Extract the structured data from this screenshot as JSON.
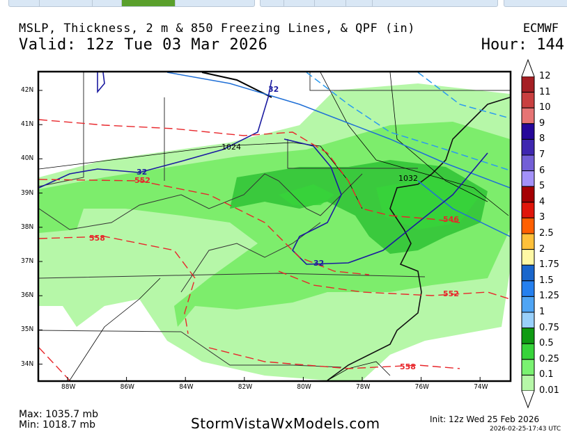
{
  "nav": {
    "groups": [
      {
        "buttons": 5,
        "active_index": 3
      },
      {
        "buttons": 5
      },
      {
        "buttons": 1
      }
    ]
  },
  "header": {
    "title": "MSLP, Thickness, 2 m & 850 Freezing Lines, & QPF (in)",
    "valid": "Valid: 12z Tue 03 Mar 2026",
    "model": "ECMWF",
    "hour": "Hour: 144"
  },
  "map": {
    "lat_labels": [
      "42N",
      "41N",
      "40N",
      "39N",
      "38N",
      "37N",
      "36N",
      "35N",
      "34N"
    ],
    "lon_labels": [
      "88W",
      "86W",
      "84W",
      "82W",
      "80W",
      "78W",
      "76W",
      "74W"
    ],
    "contour_labels": {
      "freezing": [
        "32",
        "32",
        "32"
      ],
      "isobars": [
        "1024",
        "1032"
      ],
      "thickness": [
        "552",
        "558",
        "546",
        "552",
        "558"
      ]
    },
    "colors": {
      "freezing_line": "#1a1aa0",
      "thickness": "#e8262b",
      "isobar": "#000000",
      "qpf_0_01": "#b6f7a8",
      "qpf_0_1": "#7ded6c",
      "qpf_0_25": "#3ac93d",
      "line_850": "#1f6fd6"
    }
  },
  "colorbar": {
    "labels": [
      "12",
      "11",
      "10",
      "9",
      "8",
      "7",
      "6",
      "5",
      "4",
      "3",
      "2.5",
      "2",
      "1.75",
      "1.5",
      "1.25",
      "1",
      "0.75",
      "0.5",
      "0.25",
      "0.1",
      "0.01"
    ],
    "colors": [
      "#a51f24",
      "#c93f3f",
      "#e67474",
      "#26079a",
      "#3f27b0",
      "#735fd6",
      "#a391f8",
      "#a50003",
      "#e0150a",
      "#ff5f00",
      "#ffc03a",
      "#fff8a5",
      "#1a66cc",
      "#2580ef",
      "#4fa5f5",
      "#99d0fb",
      "#0f9b13",
      "#37d43a",
      "#7af271",
      "#b6f7a8"
    ]
  },
  "footer": {
    "max": "Max: 1035.7 mb",
    "min": "Min: 1018.7 mb",
    "site": "StormVistaWxModels.com",
    "init": "Init: 12z Wed 25 Feb 2026",
    "stamp": "2026-02-25-17:43 UTC"
  }
}
